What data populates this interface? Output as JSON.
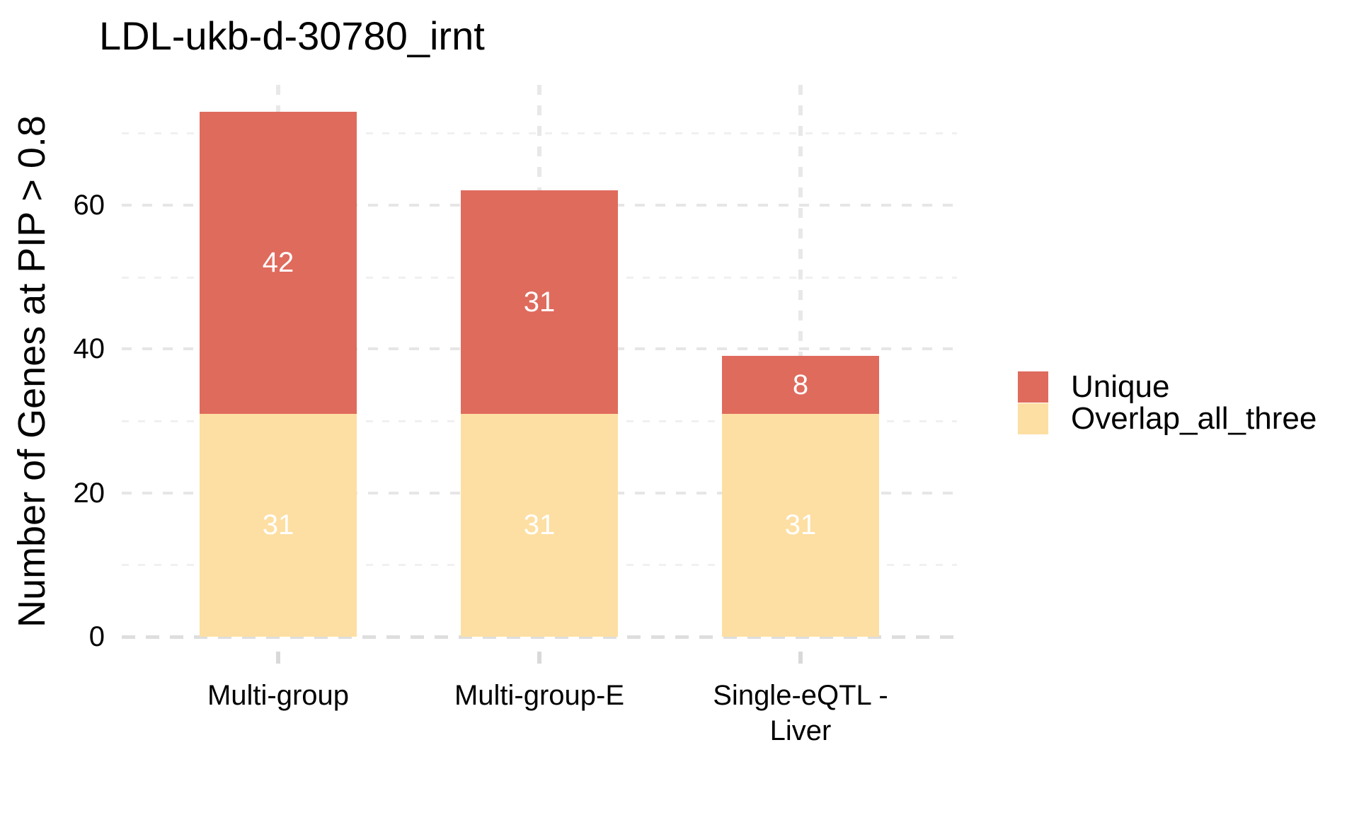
{
  "chart_data": {
    "type": "bar",
    "stacked": true,
    "title": "LDL-ukb-d-30780_irnt",
    "xlabel": "",
    "ylabel": "Number of Genes at PIP > 0.8",
    "categories": [
      "Multi-group",
      "Multi-group-E",
      "Single-eQTL -\nLiver"
    ],
    "series": [
      {
        "name": "Overlap_all_three",
        "color": "#FDDFA3",
        "values": [
          31,
          31,
          31
        ]
      },
      {
        "name": "Unique",
        "color": "#DF6B5D",
        "values": [
          42,
          31,
          8
        ]
      }
    ],
    "totals": [
      73,
      62,
      39
    ],
    "bar_label_color": "#FFFFFF",
    "y_ticks": [
      0,
      20,
      40,
      60
    ],
    "y_minor_ticks": [
      10,
      30,
      50,
      70
    ],
    "ylim": [
      0,
      76.7
    ],
    "grid": "dashed",
    "grid_orientation": "both",
    "legend_position": "right",
    "legend_order": [
      "Unique",
      "Overlap_all_three"
    ]
  }
}
